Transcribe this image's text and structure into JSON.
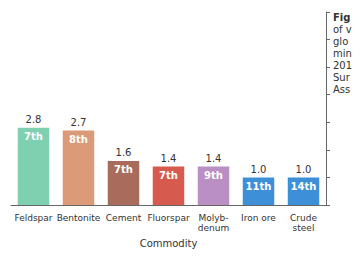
{
  "chart_data": {
    "type": "bar",
    "x_label": "Commodity",
    "categories": [
      "Feldspar",
      "Bentonite",
      "Cement",
      "Fluorspar",
      "Molyb-\ndenum",
      "Iron ore",
      "Crude\nsteel"
    ],
    "values": [
      2.8,
      2.7,
      1.6,
      1.4,
      1.4,
      1.0,
      1.0
    ],
    "value_labels": [
      "2.8",
      "2.7",
      "1.6",
      "1.4",
      "1.4",
      "1.0",
      "1.0"
    ],
    "ranks": [
      "7th",
      "8th",
      "7th",
      "7th",
      "9th",
      "11th",
      "14th"
    ],
    "colors": [
      "#7fcfb1",
      "#db9a78",
      "#a96c5c",
      "#d65a4e",
      "#b98fc4",
      "#3d8fd8",
      "#3d8fd8"
    ],
    "ylim": [
      0,
      7
    ],
    "yticks": [
      0,
      1,
      2,
      3,
      4,
      5,
      6,
      7
    ],
    "grid": false,
    "data_labels": true,
    "tick_labels": "x",
    "caption": [
      "Fig",
      "of v",
      "glo",
      "min",
      "201",
      "Sur",
      "Ass"
    ]
  }
}
